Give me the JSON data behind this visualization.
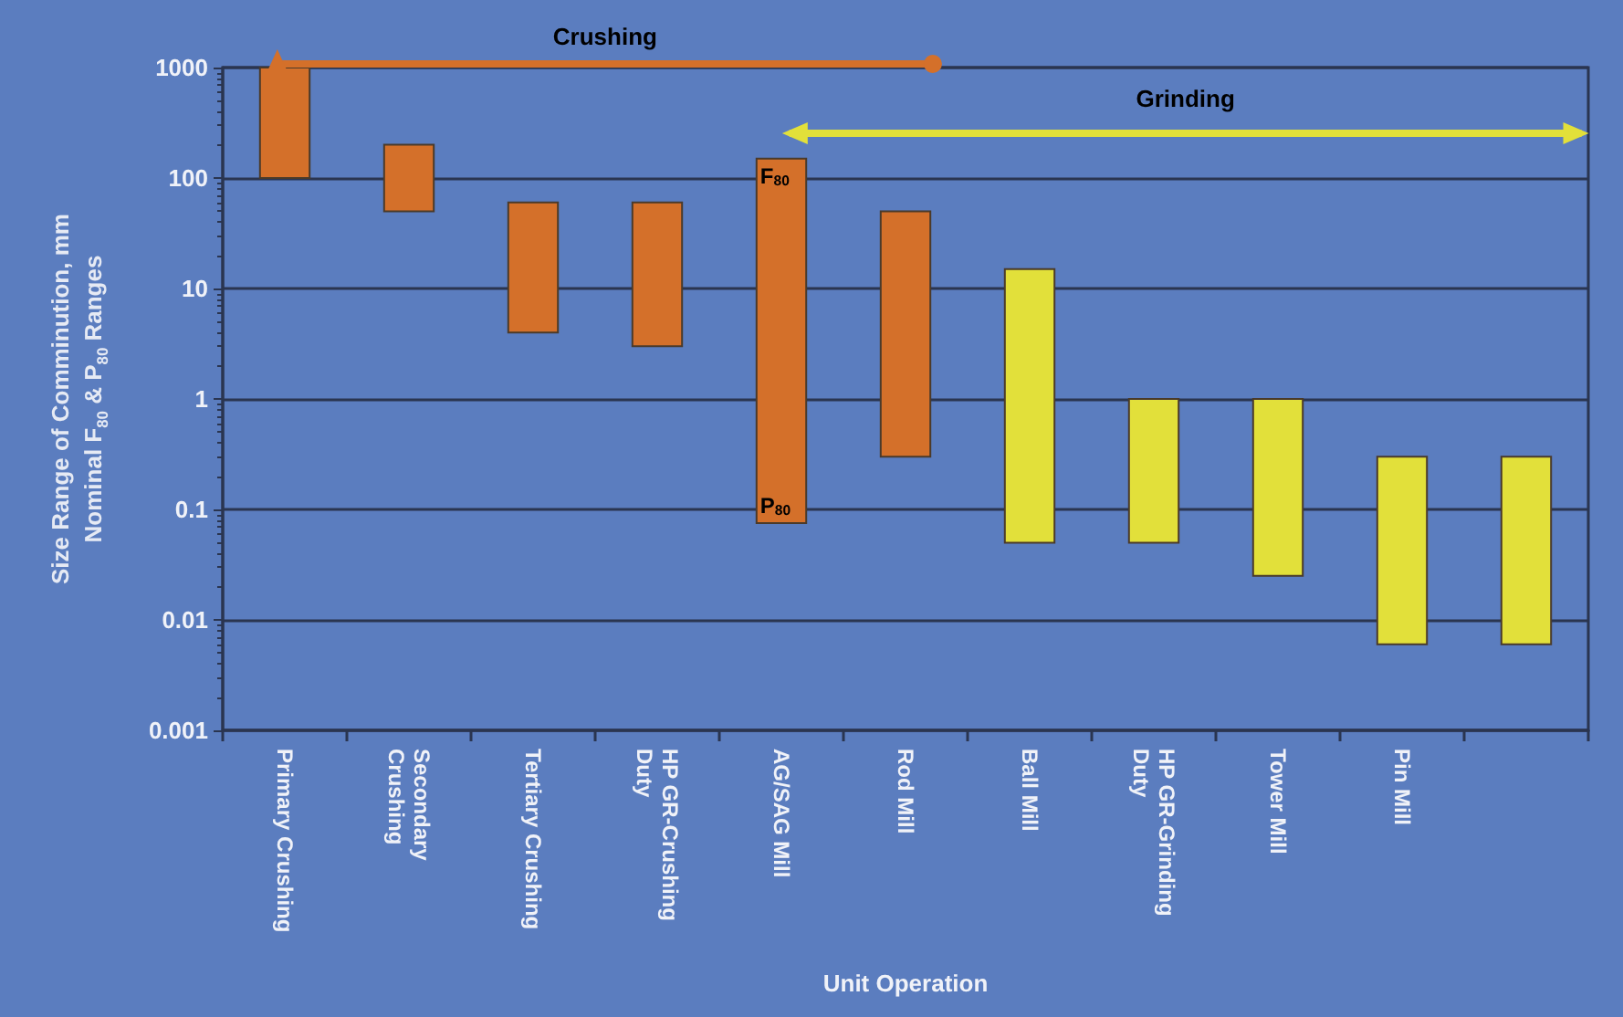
{
  "chart_data": {
    "type": "bar",
    "categories": [
      "Primary Crushing",
      "Secondary Crushing",
      "Tertiary Crushing",
      "HP GR-Crushing Duty",
      "AG/SAG Mill",
      "Rod Mill",
      "Ball Mill",
      "HP GR-Grinding Duty",
      "Tower Mill",
      "Pin Mill",
      null
    ],
    "base": [
      100,
      50,
      4,
      3,
      0.075,
      0.3,
      0.05,
      0.05,
      0.025,
      0.006,
      0.006
    ],
    "values": [
      900,
      150,
      56,
      57,
      149.925,
      49.7,
      14.95,
      0.95,
      0.975,
      0.294,
      0.294
    ],
    "colors": [
      "#d4702a",
      "#d4702a",
      "#d4702a",
      "#d4702a",
      "#d4702a",
      "#d4702a",
      "#e2e03a",
      "#e2e03a",
      "#e2e03a",
      "#e2e03a",
      "#e2e03a"
    ],
    "xlabel": "Unit Operation",
    "ylabel": "Size Range of Comminution, mm\nNominal F$_{80}$ & P$_{80}$ Ranges",
    "log": "y",
    "ylim": [
      0.001,
      1000
    ],
    "yticks": [
      0.001,
      0.01,
      0.1,
      1,
      10,
      100,
      1000
    ],
    "grid": "y",
    "annotations": [
      "Crushing",
      "Grinding",
      {
        "text": "F$_{80}$",
        "x": "AG/SAG Mill",
        "y": 150
      },
      {
        "text": "P$_{80}$",
        "x": "AG/SAG Mill",
        "y": 0.075
      }
    ]
  }
}
